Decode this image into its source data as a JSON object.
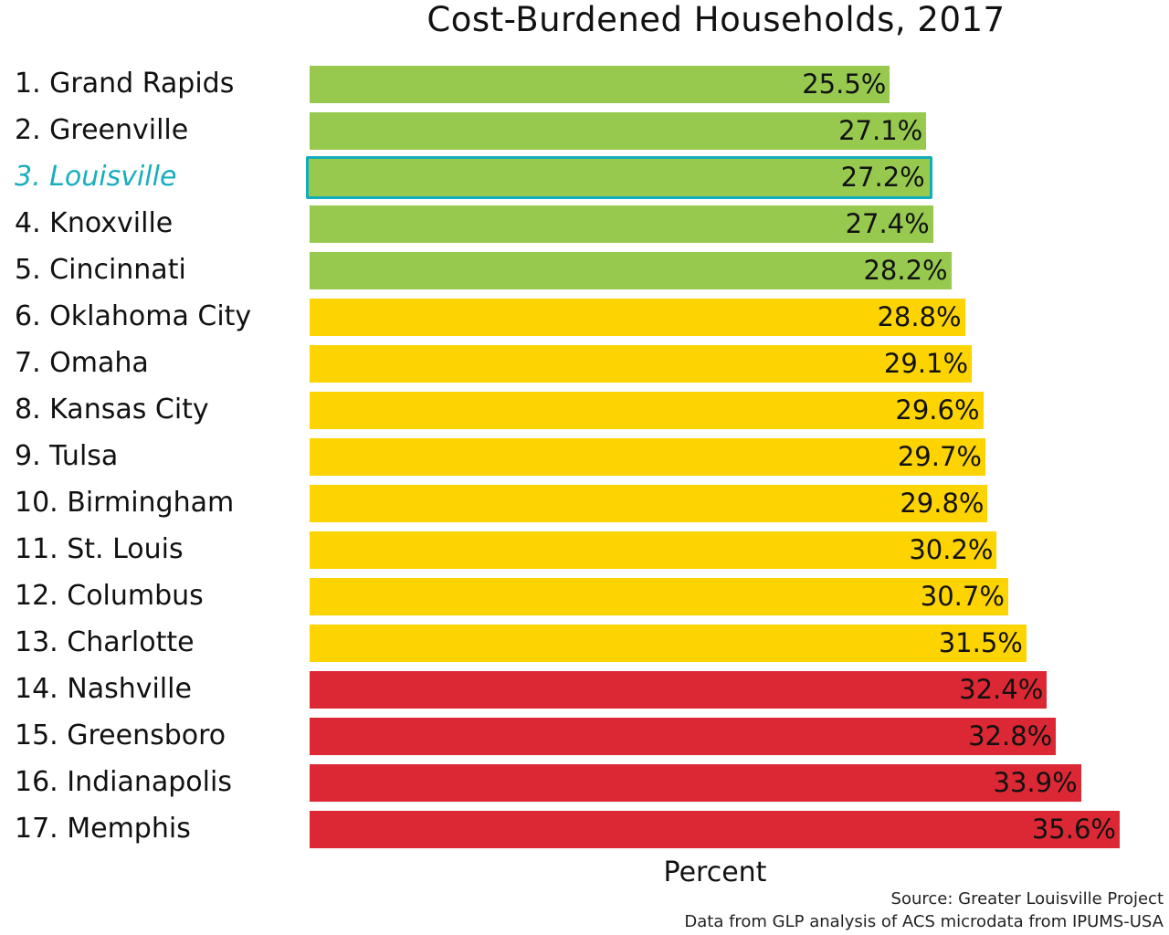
{
  "chart_data": {
    "type": "bar",
    "orientation": "horizontal",
    "title": "Cost-Burdened Households, 2017",
    "xlabel": "Percent",
    "ylabel": "",
    "xlim": [
      0,
      35.6
    ],
    "grid": false,
    "categories": [
      "1. Grand Rapids",
      "2. Greenville",
      "3. Louisville",
      "4. Knoxville",
      "5. Cincinnati",
      "6. Oklahoma City",
      "7. Omaha",
      "8. Kansas City",
      "9. Tulsa",
      "10. Birmingham",
      "11. St. Louis",
      "12. Columbus",
      "13. Charlotte",
      "14. Nashville",
      "15. Greensboro",
      "16. Indianapolis",
      "17. Memphis"
    ],
    "values": [
      25.5,
      27.1,
      27.2,
      27.4,
      28.2,
      28.8,
      29.1,
      29.6,
      29.7,
      29.8,
      30.2,
      30.7,
      31.5,
      32.4,
      32.8,
      33.9,
      35.6
    ],
    "data_labels": [
      "25.5%",
      "27.1%",
      "27.2%",
      "27.4%",
      "28.2%",
      "28.8%",
      "29.1%",
      "29.6%",
      "29.7%",
      "29.8%",
      "30.2%",
      "30.7%",
      "31.5%",
      "32.4%",
      "32.8%",
      "33.9%",
      "35.6%"
    ],
    "tiers": [
      "green",
      "green",
      "green",
      "green",
      "green",
      "yellow",
      "yellow",
      "yellow",
      "yellow",
      "yellow",
      "yellow",
      "yellow",
      "yellow",
      "red",
      "red",
      "red",
      "red"
    ],
    "highlighted": "3. Louisville"
  },
  "colors": {
    "green": "#97c94f",
    "yellow": "#fdd400",
    "red": "#dc2834",
    "highlight": "#13adbc"
  },
  "source": {
    "line1": "Source: Greater Louisville Project",
    "line2": "Data from GLP analysis of ACS microdata from IPUMS-USA"
  }
}
